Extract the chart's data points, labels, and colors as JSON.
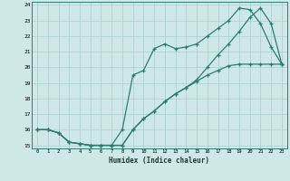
{
  "xlabel": "Humidex (Indice chaleur)",
  "bg_color": "#cde8e5",
  "line_color": "#2d7d6e",
  "grid_color": "#aacfcc",
  "xlim": [
    -0.5,
    23.5
  ],
  "ylim": [
    14.8,
    24.2
  ],
  "xticks": [
    0,
    1,
    2,
    3,
    4,
    5,
    6,
    7,
    8,
    9,
    10,
    11,
    12,
    13,
    14,
    15,
    16,
    17,
    18,
    19,
    20,
    21,
    22,
    23
  ],
  "yticks": [
    15,
    16,
    17,
    18,
    19,
    20,
    21,
    22,
    23,
    24
  ],
  "line1_x": [
    0,
    1,
    2,
    3,
    4,
    5,
    6,
    7,
    8,
    9,
    10,
    11,
    12,
    13,
    14,
    15,
    16,
    17,
    18,
    19,
    20,
    21,
    22,
    23
  ],
  "line1_y": [
    16.0,
    16.0,
    15.8,
    15.2,
    15.1,
    15.0,
    15.0,
    15.0,
    16.0,
    19.5,
    19.8,
    21.2,
    21.5,
    21.2,
    21.3,
    21.5,
    22.0,
    22.5,
    23.0,
    23.8,
    23.7,
    22.8,
    21.3,
    20.2
  ],
  "line2_x": [
    0,
    1,
    2,
    3,
    4,
    5,
    6,
    7,
    8,
    9,
    10,
    11,
    12,
    13,
    14,
    15,
    16,
    17,
    18,
    19,
    20,
    21,
    22,
    23
  ],
  "line2_y": [
    16.0,
    16.0,
    15.8,
    15.2,
    15.1,
    15.0,
    15.0,
    15.0,
    15.0,
    16.0,
    16.7,
    17.2,
    17.8,
    18.3,
    18.7,
    19.1,
    19.5,
    19.8,
    20.1,
    20.2,
    20.2,
    20.2,
    20.2,
    20.2
  ],
  "line3_x": [
    0,
    1,
    2,
    3,
    4,
    5,
    6,
    7,
    8,
    9,
    10,
    11,
    12,
    13,
    14,
    15,
    16,
    17,
    18,
    19,
    20,
    21,
    22,
    23
  ],
  "line3_y": [
    16.0,
    16.0,
    15.8,
    15.2,
    15.1,
    15.0,
    15.0,
    15.0,
    15.0,
    16.0,
    16.7,
    17.2,
    17.8,
    18.3,
    18.7,
    19.2,
    20.0,
    20.8,
    21.5,
    22.3,
    23.2,
    23.8,
    22.8,
    20.2
  ]
}
